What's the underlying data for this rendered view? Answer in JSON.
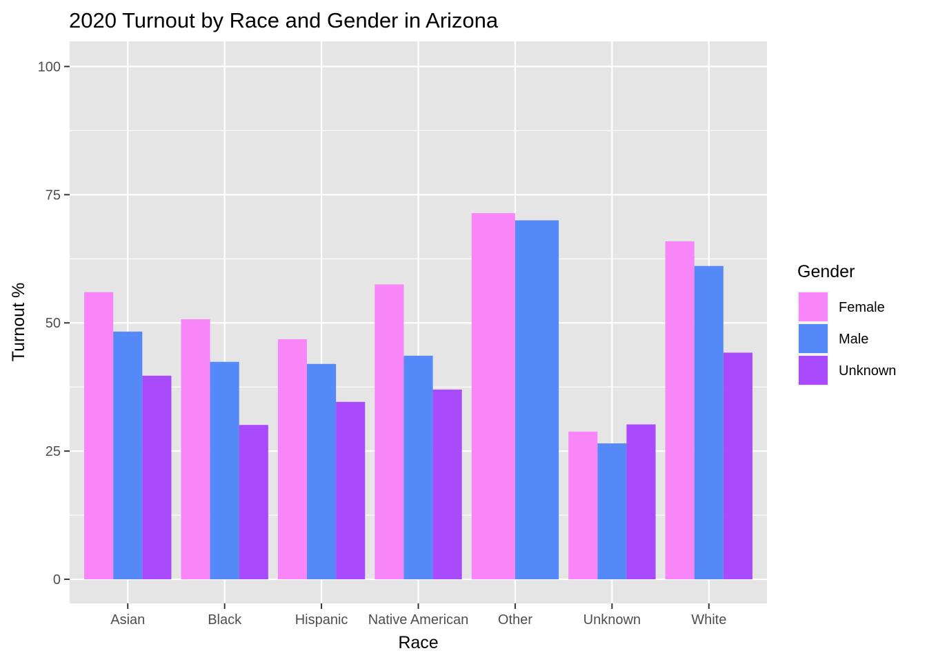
{
  "chart_data": {
    "type": "bar",
    "title": "2020 Turnout by Race and Gender in Arizona",
    "xlabel": "Race",
    "ylabel": "Turnout %",
    "categories": [
      "Asian",
      "Black",
      "Hispanic",
      "Native American",
      "Other",
      "Unknown",
      "White"
    ],
    "yticks": [
      0,
      25,
      50,
      75,
      100
    ],
    "ylim": [
      -4.7,
      104.9
    ],
    "grid": true,
    "legend": {
      "title": "Gender",
      "position": "right"
    },
    "series": [
      {
        "name": "Female",
        "color": "#F886F8",
        "values": [
          56.0,
          50.7,
          46.8,
          57.5,
          71.4,
          28.8,
          65.9
        ]
      },
      {
        "name": "Male",
        "color": "#5689F8",
        "values": [
          48.3,
          42.4,
          42.0,
          43.6,
          70.0,
          26.5,
          61.1
        ]
      },
      {
        "name": "Unknown",
        "color": "#AA4AFD",
        "values": [
          39.7,
          30.1,
          34.6,
          37.0,
          null,
          30.2,
          44.2
        ]
      }
    ]
  }
}
